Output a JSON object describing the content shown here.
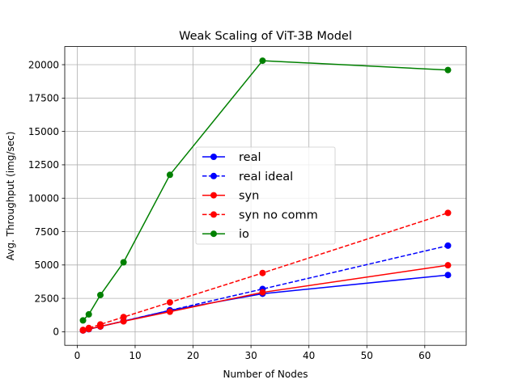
{
  "chart_data": {
    "type": "line",
    "title": "Weak Scaling of ViT-3B Model",
    "xlabel": "Number of Nodes",
    "ylabel": "Avg. Throughput (img/sec)",
    "xlim": [
      -2.15,
      67.15
    ],
    "ylim": [
      -1016.6,
      21357.8
    ],
    "xticks": [
      0,
      10,
      20,
      30,
      40,
      50,
      60
    ],
    "yticks": [
      0,
      2500,
      5000,
      7500,
      10000,
      12500,
      15000,
      17500,
      20000
    ],
    "grid": true,
    "legend_position": "center-right",
    "series": [
      {
        "name": "real",
        "color": "#0000ff",
        "linestyle": "solid",
        "marker": "circle",
        "x": [
          1,
          2,
          4,
          8,
          16,
          32,
          64
        ],
        "y": [
          100,
          190,
          390,
          790,
          1600,
          2850,
          4250
        ]
      },
      {
        "name": "real ideal",
        "color": "#0000ff",
        "linestyle": "dashed",
        "marker": "circle",
        "x": [
          1,
          2,
          4,
          8,
          16,
          32,
          64
        ],
        "y": [
          100,
          200,
          400,
          800,
          1600,
          3200,
          6450
        ]
      },
      {
        "name": "syn",
        "color": "#ff0000",
        "linestyle": "solid",
        "marker": "circle",
        "x": [
          1,
          2,
          4,
          8,
          16,
          32,
          64
        ],
        "y": [
          100,
          200,
          400,
          780,
          1500,
          2950,
          4980
        ]
      },
      {
        "name": "syn no comm",
        "color": "#ff0000",
        "linestyle": "dashed",
        "marker": "circle",
        "x": [
          1,
          2,
          4,
          8,
          16,
          32,
          64
        ],
        "y": [
          140,
          280,
          550,
          1100,
          2200,
          4400,
          8900
        ]
      },
      {
        "name": "io",
        "color": "#008000",
        "linestyle": "solid",
        "marker": "circle",
        "x": [
          1,
          2,
          4,
          8,
          16,
          32,
          64
        ],
        "y": [
          850,
          1300,
          2750,
          5200,
          11750,
          20300,
          19600
        ]
      }
    ]
  }
}
